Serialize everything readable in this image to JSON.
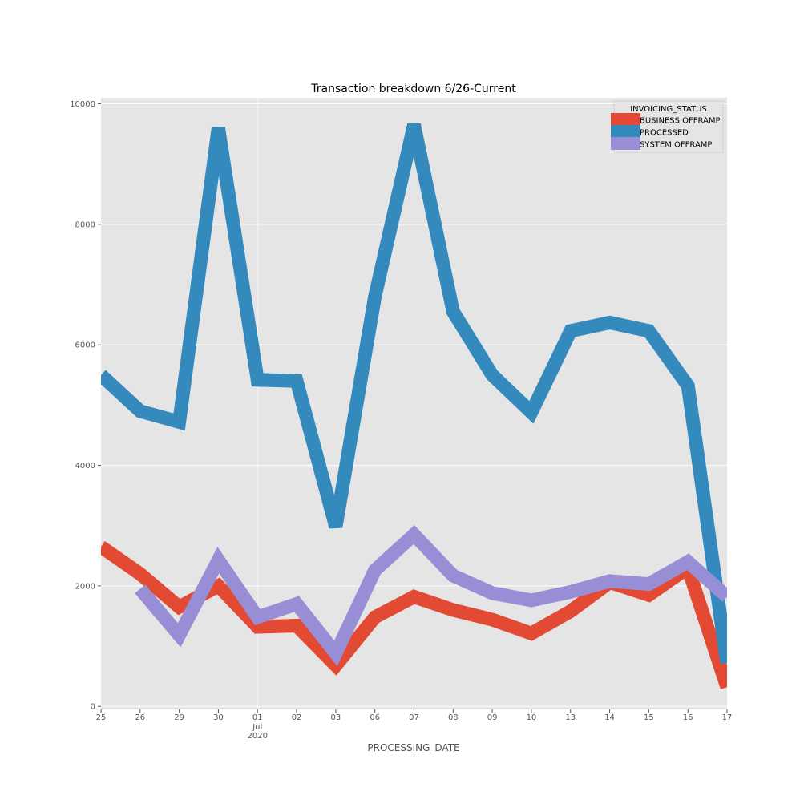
{
  "chart_data": {
    "type": "line",
    "title": "Transaction breakdown 6/26-Current",
    "xlabel": "PROCESSING_DATE",
    "ylabel": "",
    "categories": [
      "25",
      "26",
      "29",
      "30",
      "01",
      "02",
      "03",
      "06",
      "07",
      "08",
      "09",
      "10",
      "13",
      "14",
      "15",
      "16",
      "17"
    ],
    "month_year_label": [
      "Jul",
      "2020"
    ],
    "y_ticks": [
      0,
      2000,
      4000,
      6000,
      8000,
      10000
    ],
    "ylim": [
      -50,
      10100
    ],
    "grid": true,
    "legend": {
      "title": "INVOICING_STATUS",
      "placement": "top-right"
    },
    "series": [
      {
        "name": "BUSINESS OFFRAMP",
        "color": "#E24A33",
        "values": [
          2650,
          2200,
          1650,
          2000,
          1320,
          1340,
          680,
          1480,
          1820,
          1600,
          1440,
          1210,
          1580,
          2060,
          1850,
          2300,
          320
        ]
      },
      {
        "name": "PROCESSED",
        "color": "#348ABD",
        "values": [
          5500,
          4900,
          4720,
          9600,
          5420,
          5400,
          2980,
          6800,
          9650,
          6550,
          5500,
          4880,
          6230,
          6370,
          6230,
          5320,
          720
        ]
      },
      {
        "name": "SYSTEM OFFRAMP",
        "color": "#988ED5",
        "values": [
          null,
          1950,
          1180,
          2430,
          1480,
          1700,
          880,
          2260,
          2850,
          2170,
          1880,
          1760,
          1900,
          2080,
          2030,
          2400,
          1820
        ]
      }
    ]
  }
}
